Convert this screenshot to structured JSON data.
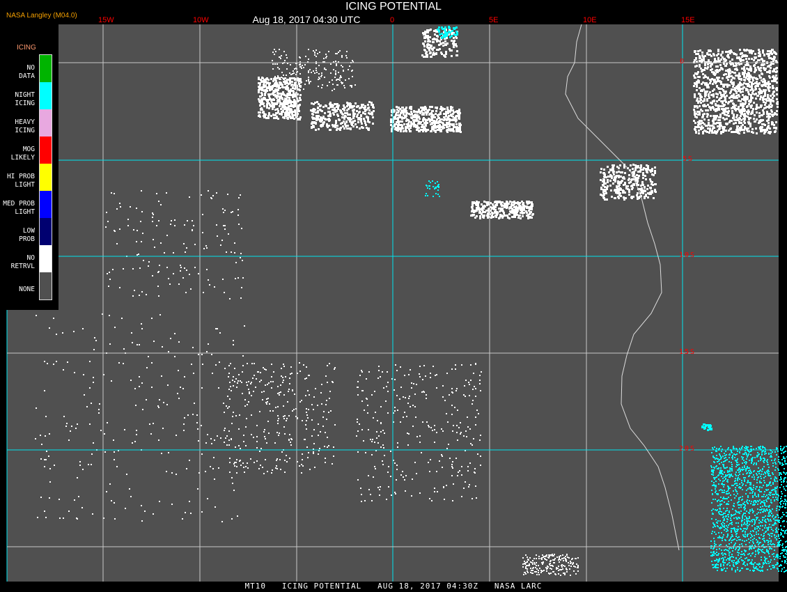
{
  "header": {
    "title": "ICING POTENTIAL",
    "datetime": "Aug 18, 2017 04:30 UTC",
    "provider": "NASA Langley (M04.0)"
  },
  "longitude_labels": [
    "15W",
    "10W",
    "0",
    "5E",
    "10E",
    "15E"
  ],
  "latitude_labels": [
    "0",
    "5S",
    "10S",
    "15S",
    "20S"
  ],
  "legend": {
    "title": "ICING",
    "items": [
      {
        "label": "NO DATA",
        "color": "#00b400"
      },
      {
        "label": "NIGHT ICING",
        "color": "#00ffff"
      },
      {
        "label": "HEAVY ICING",
        "color": "#e8a8e0"
      },
      {
        "label": "MOG LIKELY",
        "color": "#ff0000"
      },
      {
        "label": "HI PROB LIGHT",
        "color": "#ffff00"
      },
      {
        "label": "MED PROB LIGHT",
        "color": "#0000ff"
      },
      {
        "label": "LOW PROB",
        "color": "#000070"
      },
      {
        "label": "NO RETRVL",
        "color": "#ffffff"
      },
      {
        "label": "NONE",
        "color": "#505050"
      }
    ]
  },
  "colors": {
    "background": "#505050",
    "grid_major": "#00e5ee",
    "grid_minor": "#c8c8c8",
    "labels": "#ff0000"
  },
  "footer": "MT10   ICING POTENTIAL   AUG 18, 2017 04:30Z   NASA LARC"
}
